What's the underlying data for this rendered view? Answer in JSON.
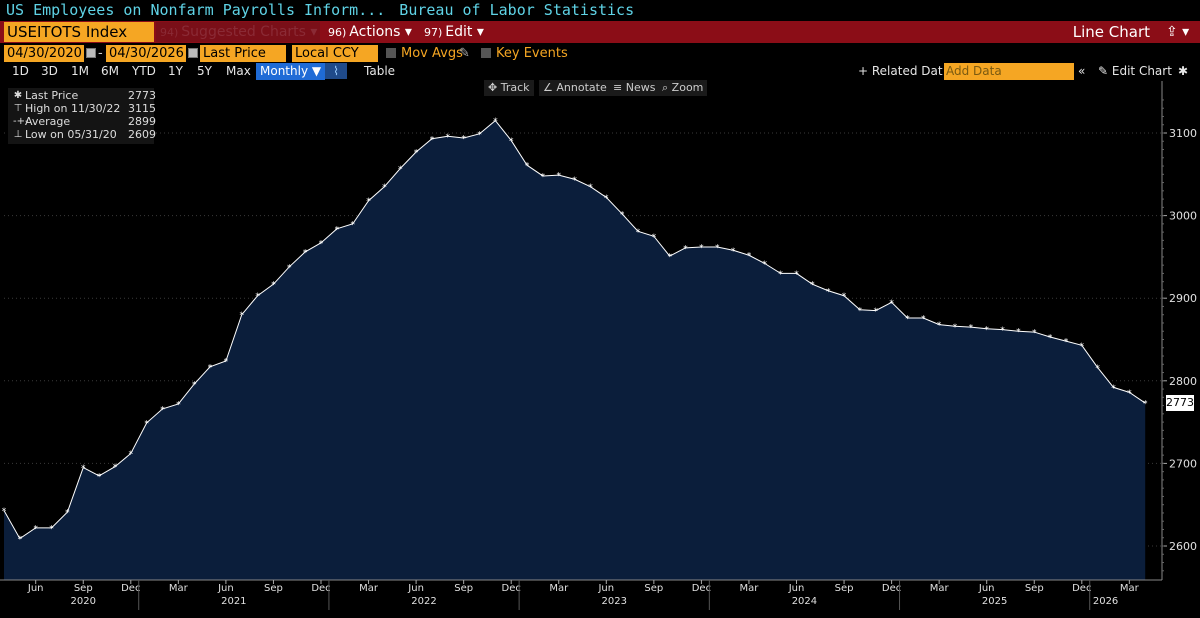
{
  "header": {
    "title": "US Employees on Nonfarm Payrolls Inform...",
    "source": "Bureau of Labor Statistics"
  },
  "toolbar": {
    "ticker": "USEITOTS Index",
    "suggested_num": "94)",
    "suggested": "Suggested Charts",
    "actions_num": "96)",
    "actions": "Actions",
    "edit_num": "97)",
    "edit": "Edit",
    "chart_type": "Line Chart"
  },
  "options": {
    "start_date": "04/30/2020",
    "end_date": "04/30/2026",
    "dash": "-",
    "price_field": "Last Price",
    "currency": "Local CCY",
    "mov_avgs": "Mov Avgs",
    "key_events": "Key Events"
  },
  "nav": {
    "ranges": [
      "1D",
      "3D",
      "1M",
      "6M",
      "YTD",
      "1Y",
      "5Y",
      "Max"
    ],
    "frequency": "Monthly",
    "table": "Table",
    "related": "+ Related Dat",
    "add_data": "Add Data",
    "edit_chart": "Edit Chart"
  },
  "tools": {
    "track": "Track",
    "annotate": "Annotate",
    "news": "News",
    "zoom": "Zoom"
  },
  "legend": {
    "last_label": "Last Price",
    "last_value": "2773",
    "high_label": "High on 11/30/22",
    "high_value": "3115",
    "avg_label": "Average",
    "avg_value": "2899",
    "low_label": "Low on 05/31/20",
    "low_value": "2609"
  },
  "colors": {
    "area_fill": "#0b1e3b",
    "line": "#ffffff",
    "ticker_bg": "#f5a623",
    "bar_red": "#8b0d17",
    "title_text": "#5fd3e6"
  },
  "chart_data": {
    "type": "area",
    "x_start": "2020-04",
    "frequency": "monthly",
    "ylim": [
      2560,
      3150
    ],
    "yticks": [
      2600,
      2700,
      2800,
      2900,
      3000,
      3100
    ],
    "last_value_label": "2773",
    "month_ticks": [
      "Jun",
      "Sep",
      "Dec",
      "Mar",
      "Jun",
      "Sep",
      "Dec",
      "Mar",
      "Jun",
      "Sep",
      "Dec",
      "Mar",
      "Jun",
      "Sep",
      "Dec",
      "Mar",
      "Jun",
      "Sep",
      "Dec",
      "Mar",
      "Jun",
      "Sep",
      "Dec",
      "Mar"
    ],
    "year_labels": [
      "2020",
      "2021",
      "2022",
      "2023",
      "2024",
      "2025",
      "2026"
    ],
    "values": [
      2643,
      2609,
      2622,
      2622,
      2641,
      2695,
      2685,
      2696,
      2712,
      2749,
      2766,
      2772,
      2796,
      2817,
      2824,
      2880,
      2903,
      2917,
      2938,
      2956,
      2967,
      2984,
      2990,
      3018,
      3035,
      3057,
      3077,
      3093,
      3096,
      3094,
      3099,
      3115,
      3091,
      3061,
      3048,
      3049,
      3044,
      3035,
      3022,
      3002,
      2981,
      2975,
      2951,
      2961,
      2962,
      2962,
      2958,
      2952,
      2942,
      2930,
      2930,
      2917,
      2909,
      2903,
      2886,
      2885,
      2895,
      2876,
      2876,
      2868,
      2866,
      2865,
      2863,
      2862,
      2860,
      2859,
      2853,
      2848,
      2843,
      2816,
      2792,
      2786,
      2773
    ]
  }
}
